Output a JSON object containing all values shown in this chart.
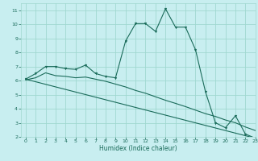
{
  "xlabel": "Humidex (Indice chaleur)",
  "bg_color": "#c8eef0",
  "grid_color": "#a0d8d0",
  "line_color": "#1a6b5a",
  "marker_color": "#1a6b5a",
  "xlim": [
    -0.5,
    23
  ],
  "ylim": [
    2,
    11.5
  ],
  "yticks": [
    2,
    3,
    4,
    5,
    6,
    7,
    8,
    9,
    10,
    11
  ],
  "xticks": [
    0,
    1,
    2,
    3,
    4,
    5,
    6,
    7,
    8,
    9,
    10,
    11,
    12,
    13,
    14,
    15,
    16,
    17,
    18,
    19,
    20,
    21,
    22,
    23
  ],
  "curve1_x": [
    0,
    1,
    2,
    3,
    4,
    5,
    6,
    7,
    8,
    9,
    10,
    11,
    12,
    13,
    14,
    15,
    16,
    17,
    18,
    19,
    20,
    21,
    22,
    23
  ],
  "curve1_y": [
    6.1,
    6.5,
    7.0,
    7.0,
    6.85,
    6.8,
    7.1,
    6.5,
    6.3,
    6.2,
    8.8,
    10.05,
    10.05,
    9.5,
    11.1,
    9.8,
    9.8,
    8.2,
    5.2,
    3.0,
    2.65,
    3.5,
    2.2,
    1.9
  ],
  "curve2_x": [
    0,
    23
  ],
  "curve2_y": [
    6.1,
    1.9
  ],
  "curve3_x": [
    0,
    1,
    2,
    3,
    4,
    5,
    6,
    7,
    8,
    9,
    10,
    11,
    12,
    13,
    14,
    15,
    16,
    17,
    18,
    19,
    20,
    21,
    22,
    23
  ],
  "curve3_y": [
    6.05,
    6.2,
    6.55,
    6.35,
    6.3,
    6.2,
    6.25,
    6.1,
    5.95,
    5.75,
    5.55,
    5.3,
    5.1,
    4.85,
    4.6,
    4.38,
    4.15,
    3.9,
    3.65,
    3.45,
    3.2,
    3.0,
    2.7,
    2.45
  ]
}
